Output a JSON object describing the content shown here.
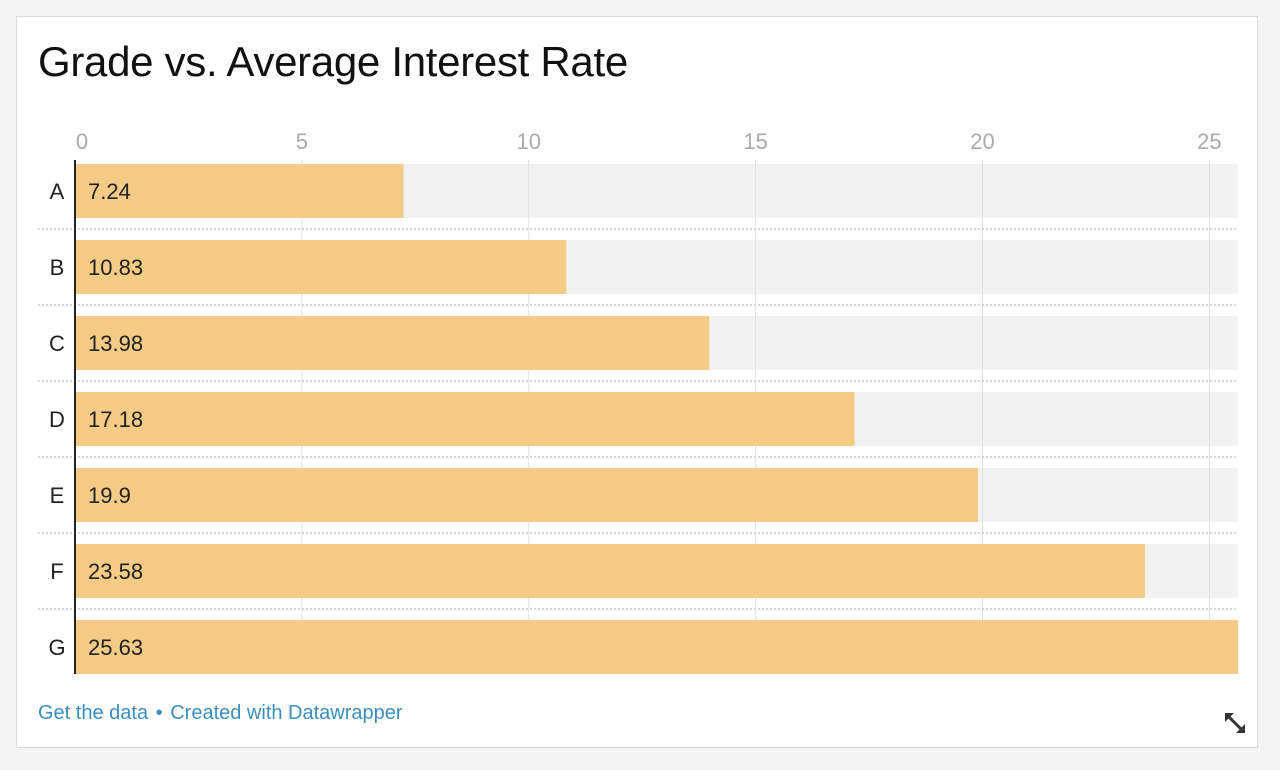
{
  "chart_data": {
    "type": "bar",
    "orientation": "horizontal",
    "title": "Grade vs. Average Interest Rate",
    "categories": [
      "A",
      "B",
      "C",
      "D",
      "E",
      "F",
      "G"
    ],
    "values": [
      7.24,
      10.83,
      13.98,
      17.18,
      19.9,
      23.58,
      25.63
    ],
    "value_labels": [
      "7.24",
      "10.83",
      "13.98",
      "17.18",
      "19.9",
      "23.58",
      "25.63"
    ],
    "xlim": [
      0,
      25.63
    ],
    "xticks": [
      0,
      5,
      10,
      15,
      20,
      25
    ],
    "xtick_labels": [
      "0",
      "5",
      "10",
      "15",
      "20",
      "25"
    ],
    "axis_position": "top",
    "grid": true,
    "bar_color": "#f6cb86",
    "track_color": "#f2f2f2"
  },
  "footer": {
    "get_data": "Get the data",
    "separator": "•",
    "created_with": "Created with Datawrapper"
  },
  "colors": {
    "link": "#3b8fc0",
    "tick": "#aaaaaa",
    "gridline": "#e0e0e0"
  },
  "icons": {
    "expand": "expand-icon"
  }
}
